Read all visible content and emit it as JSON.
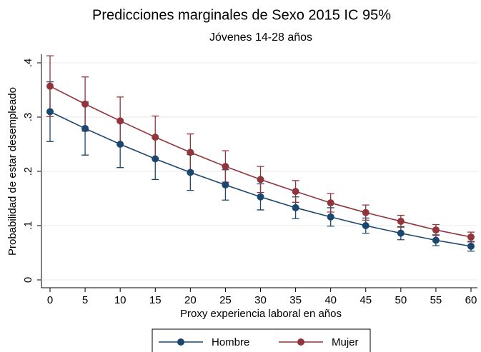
{
  "chart_data": {
    "type": "line",
    "title": "Predicciones marginales de Sexo 2015 IC 95%",
    "subtitle": "Jóvenes 14-28 años",
    "x_label": "Proxy experiencia laboral en años",
    "y_label": "Probabilidad de estar desempleado",
    "x": [
      0,
      5,
      10,
      15,
      20,
      25,
      30,
      35,
      40,
      45,
      50,
      55,
      60
    ],
    "series": [
      {
        "name": "Hombre",
        "color": "#1a476f",
        "values": [
          0.31,
          0.279,
          0.25,
          0.223,
          0.198,
          0.175,
          0.153,
          0.133,
          0.116,
          0.1,
          0.086,
          0.073,
          0.062
        ],
        "errors": [
          0.055,
          0.049,
          0.043,
          0.038,
          0.033,
          0.028,
          0.024,
          0.02,
          0.017,
          0.014,
          0.012,
          0.01,
          0.009
        ]
      },
      {
        "name": "Mujer",
        "color": "#90353b",
        "values": [
          0.357,
          0.324,
          0.293,
          0.263,
          0.235,
          0.209,
          0.185,
          0.163,
          0.142,
          0.124,
          0.108,
          0.092,
          0.079
        ],
        "errors": [
          0.056,
          0.05,
          0.044,
          0.039,
          0.034,
          0.029,
          0.024,
          0.02,
          0.017,
          0.014,
          0.011,
          0.01,
          0.009
        ]
      }
    ],
    "xlim": [
      0,
      60
    ],
    "xticks": [
      0,
      5,
      10,
      15,
      20,
      25,
      30,
      35,
      40,
      45,
      50,
      55,
      60
    ],
    "ylim": [
      0,
      0.4
    ],
    "yticks": [
      0,
      {
        "value": 0.1,
        "label": ".1"
      },
      {
        "value": 0.2,
        "label": ".2"
      },
      {
        "value": 0.3,
        "label": ".3"
      },
      {
        "value": 0.4,
        "label": ".4"
      }
    ],
    "grid": true,
    "legend": "bottom"
  }
}
